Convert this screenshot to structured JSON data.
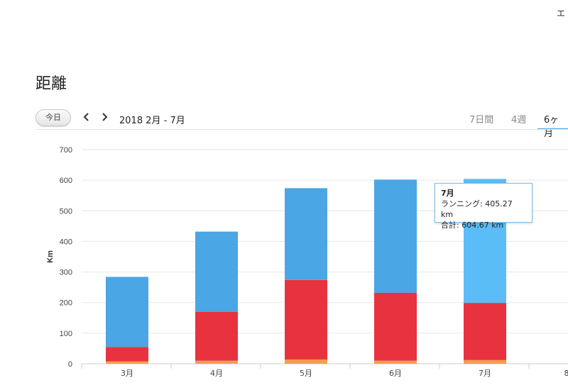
{
  "header": {
    "top_right_text": "エ",
    "page_title": "距離"
  },
  "toolbar": {
    "today_label": "今日",
    "date_range": "2018 2月 - 7月",
    "tabs": [
      {
        "label": "7日間",
        "active": false
      },
      {
        "label": "4週",
        "active": false
      },
      {
        "label": "6ヶ月",
        "active": true
      }
    ]
  },
  "icons": {
    "prev": "chevron-left-icon",
    "next": "chevron-right-icon"
  },
  "colors": {
    "running": "#4aa6e4",
    "running_highlight": "#5bbdf5",
    "red_segment": "#e8323f",
    "orange_segment": "#f0a04b",
    "accent": "#4aa6e4"
  },
  "tooltip": {
    "title": "7月",
    "running_line": "ランニング: 405.27 km",
    "total_line": "合計: 604.67 km"
  },
  "chart_data": {
    "type": "bar",
    "stacked": true,
    "ylabel": "Km",
    "ylim": [
      0,
      700
    ],
    "yticks": [
      0,
      100,
      200,
      300,
      400,
      500,
      600,
      700
    ],
    "grid": true,
    "categories": [
      "3月",
      "4月",
      "5月",
      "6月",
      "7月",
      "8"
    ],
    "series": [
      {
        "name": "",
        "color": "#f0a04b",
        "values": [
          8,
          10,
          14,
          10,
          12,
          null
        ]
      },
      {
        "name": "",
        "color": "#e8323f",
        "values": [
          47,
          160,
          260,
          222,
          187,
          null
        ]
      },
      {
        "name": "ランニング",
        "color": "#4aa6e4",
        "values": [
          229,
          262,
          300,
          370,
          405.27,
          null
        ]
      }
    ],
    "highlighted_category": "7月"
  }
}
